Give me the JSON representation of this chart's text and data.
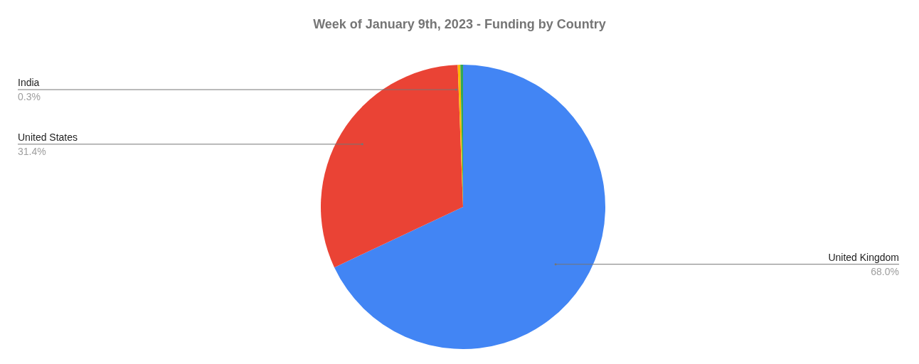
{
  "chart_data": {
    "type": "pie",
    "title": "Week of January 9th, 2023 - Funding by Country",
    "categories": [
      "United Kingdom",
      "United States",
      "India",
      null
    ],
    "values": [
      68.0,
      31.4,
      0.3,
      0.3
    ],
    "value_labels": [
      "68.0%",
      "31.4%",
      "0.3%",
      null
    ],
    "colors": [
      "#4285f4",
      "#ea4335",
      "#fbbc04",
      "#34a853"
    ]
  }
}
